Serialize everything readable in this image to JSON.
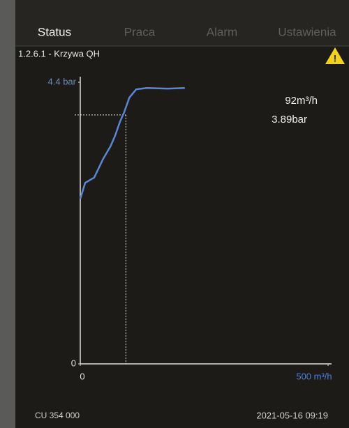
{
  "tabs": [
    "Status",
    "Praca",
    "Alarm",
    "Ustawienia"
  ],
  "screen_title": "1.2.6.1 - Krzywa QH",
  "chart_data": {
    "type": "line",
    "xlim": [
      0,
      500
    ],
    "ylim": [
      0,
      4.4
    ],
    "xticks": [
      0,
      {
        "value": 500,
        "label": "500 m³/h"
      }
    ],
    "yticks": [
      0,
      {
        "value": 4.4,
        "label": "4.4 bar"
      }
    ],
    "x": [
      0,
      10,
      28,
      46,
      61,
      70,
      80,
      89,
      99,
      113,
      134,
      176,
      211
    ],
    "series": [
      {
        "color": "#5b86d6",
        "values": [
          2.58,
          2.83,
          2.91,
          3.2,
          3.4,
          3.56,
          3.78,
          3.94,
          4.16,
          4.29,
          4.31,
          4.3,
          4.31
        ]
      }
    ],
    "operating_point": {
      "x": 92,
      "y": 3.89,
      "x_label": "92m³/h",
      "y_label": "3.89bar"
    }
  },
  "footer": {
    "device": "CU 354 000",
    "datetime": "2021-05-16 09:19"
  }
}
